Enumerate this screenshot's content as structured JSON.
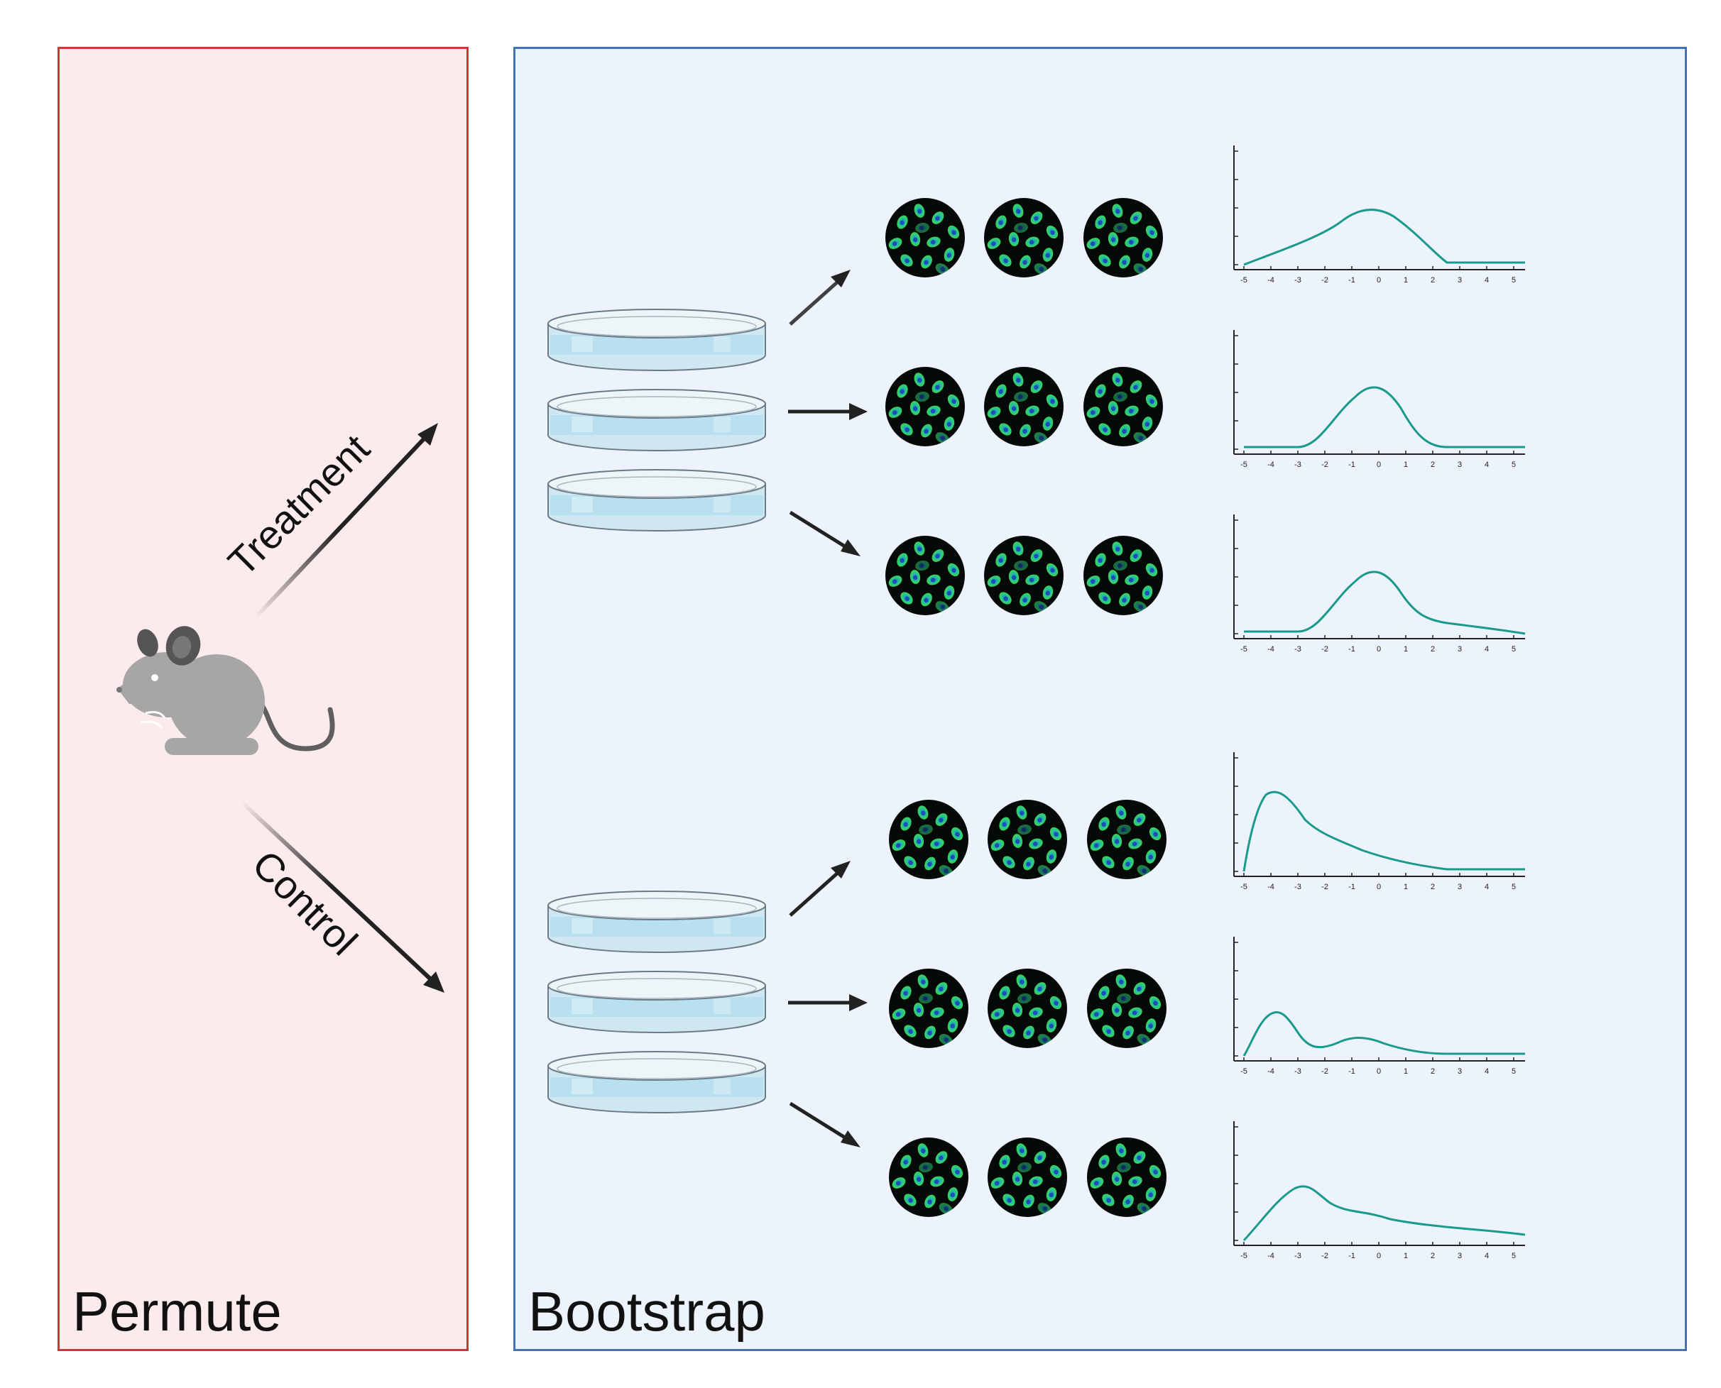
{
  "panels": {
    "permute": {
      "title": "Permute",
      "border": "#c9393a",
      "fill": "#fcebed"
    },
    "bootstrap": {
      "title": "Bootstrap",
      "border": "#4472b8",
      "fill": "#ecf3fc"
    }
  },
  "arrows": {
    "treatment_label": "Treatment",
    "control_label": "Control"
  },
  "curve_color": "#1a9a8a",
  "x_ticks": [
    "-5",
    "-4",
    "-3",
    "-2",
    "-1",
    "0",
    "1",
    "2",
    "3",
    "4",
    "5"
  ],
  "charts": [
    {
      "group": "treatment",
      "shape": "broad-peak-left"
    },
    {
      "group": "treatment",
      "shape": "centered-peak"
    },
    {
      "group": "treatment",
      "shape": "centered-peak-right-tail"
    },
    {
      "group": "control",
      "shape": "sharp-left-peak"
    },
    {
      "group": "control",
      "shape": "bimodal"
    },
    {
      "group": "control",
      "shape": "left-peak-long-tail"
    }
  ]
}
